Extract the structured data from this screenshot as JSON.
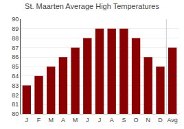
{
  "chart_data": {
    "type": "bar",
    "title": "St. Maarten Average High Temperatures",
    "categories": [
      "J",
      "F",
      "M",
      "A",
      "M",
      "J",
      "J",
      "A",
      "S",
      "O",
      "N",
      "D",
      "Avg"
    ],
    "values": [
      83,
      84,
      85,
      86,
      87,
      88,
      89,
      89,
      89,
      88,
      86,
      85,
      87
    ],
    "color": "#8b0000",
    "ylim": [
      80,
      90
    ],
    "yticks": [
      80,
      81,
      82,
      83,
      84,
      85,
      86,
      87,
      88,
      89,
      90
    ],
    "grid": true
  }
}
